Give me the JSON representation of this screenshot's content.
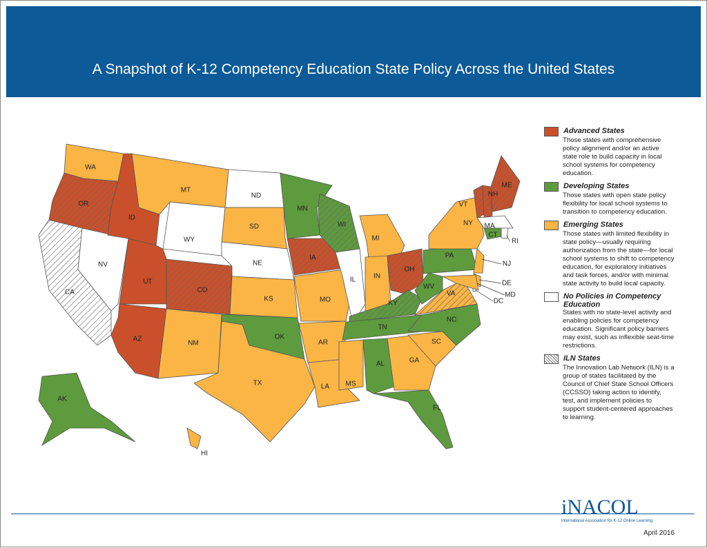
{
  "header": {
    "title": "A Snapshot of K-12 Competency Education State Policy Across the United States"
  },
  "legend": [
    {
      "title": "Advanced States",
      "text": "Those states with comprehensive policy alignment and/or an active state role to build capacity in local school systems for competency education.",
      "color": "#c9502a"
    },
    {
      "title": "Developing States",
      "text": "Those states with open state policy flexibility for local school systems to transition to competency education.",
      "color": "#5e9a3e"
    },
    {
      "title": "Emerging States",
      "text": "Those states with limited flexibility in state policy—usually requiring authorization from the state—for local school systems to shift to competency education, for exploratory initiatives and task forces, and/or with minimal state activity to build local capacity.",
      "color": "#fbb545"
    },
    {
      "title": "No Policies in Competency Education",
      "text": "States with no state-level activity and enabling policies for competency education. Significant policy barriers may exist, such as inflexible seat-time restrictions.",
      "color": "#ffffff"
    },
    {
      "title": "ILN States",
      "text": "The Innovation Lab Network (ILN) is a group of states facilitated by the Council of Chief State School Officers (CCSSO) taking action to identify, test, and implement policies to support student-centered approaches to learning.",
      "hatch": true
    }
  ],
  "states": [
    {
      "label": "WA",
      "category": 2,
      "iln": false
    },
    {
      "label": "OR",
      "category": 0,
      "iln": true
    },
    {
      "label": "CA",
      "category": 3,
      "iln": true
    },
    {
      "label": "NV",
      "category": 3,
      "iln": false
    },
    {
      "label": "ID",
      "category": 0,
      "iln": false
    },
    {
      "label": "MT",
      "category": 2,
      "iln": false
    },
    {
      "label": "WY",
      "category": 3,
      "iln": false
    },
    {
      "label": "UT",
      "category": 0,
      "iln": false
    },
    {
      "label": "CO",
      "category": 0,
      "iln": true
    },
    {
      "label": "AZ",
      "category": 0,
      "iln": false
    },
    {
      "label": "NM",
      "category": 2,
      "iln": false
    },
    {
      "label": "ND",
      "category": 3,
      "iln": false
    },
    {
      "label": "SD",
      "category": 2,
      "iln": false
    },
    {
      "label": "NE",
      "category": 3,
      "iln": false
    },
    {
      "label": "KS",
      "category": 2,
      "iln": false
    },
    {
      "label": "OK",
      "category": 1,
      "iln": false
    },
    {
      "label": "TX",
      "category": 2,
      "iln": false
    },
    {
      "label": "MN",
      "category": 1,
      "iln": false
    },
    {
      "label": "IA",
      "category": 0,
      "iln": true
    },
    {
      "label": "MO",
      "category": 2,
      "iln": false
    },
    {
      "label": "AR",
      "category": 2,
      "iln": false
    },
    {
      "label": "LA",
      "category": 2,
      "iln": false
    },
    {
      "label": "WI",
      "category": 1,
      "iln": true
    },
    {
      "label": "IL",
      "category": 3,
      "iln": false
    },
    {
      "label": "MI",
      "category": 2,
      "iln": false
    },
    {
      "label": "IN",
      "category": 2,
      "iln": false
    },
    {
      "label": "OH",
      "category": 0,
      "iln": true
    },
    {
      "label": "KY",
      "category": 1,
      "iln": true
    },
    {
      "label": "TN",
      "category": 1,
      "iln": false
    },
    {
      "label": "MS",
      "category": 2,
      "iln": false
    },
    {
      "label": "AL",
      "category": 1,
      "iln": false
    },
    {
      "label": "GA",
      "category": 2,
      "iln": false
    },
    {
      "label": "FL",
      "category": 1,
      "iln": false
    },
    {
      "label": "SC",
      "category": 2,
      "iln": false
    },
    {
      "label": "NC",
      "category": 1,
      "iln": false
    },
    {
      "label": "VA",
      "category": 2,
      "iln": true
    },
    {
      "label": "WV",
      "category": 1,
      "iln": false
    },
    {
      "label": "PA",
      "category": 1,
      "iln": false
    },
    {
      "label": "NY",
      "category": 2,
      "iln": false
    },
    {
      "label": "VT",
      "category": 0,
      "iln": true
    },
    {
      "label": "NH",
      "category": 0,
      "iln": true
    },
    {
      "label": "ME",
      "category": 0,
      "iln": true
    },
    {
      "label": "MA",
      "category": 3,
      "iln": false
    },
    {
      "label": "CT",
      "category": 1,
      "iln": false
    },
    {
      "label": "RI",
      "category": 3,
      "iln": false
    },
    {
      "label": "NJ",
      "category": 2,
      "iln": false
    },
    {
      "label": "DE",
      "category": 2,
      "iln": false
    },
    {
      "label": "MD",
      "category": 2,
      "iln": false
    },
    {
      "label": "DC",
      "category": 3,
      "iln": false
    },
    {
      "label": "AK",
      "category": 1,
      "iln": false
    },
    {
      "label": "HI",
      "category": 2,
      "iln": false
    }
  ],
  "logo": {
    "name": "iNACOL",
    "tagline": "International Association for K-12 Online Learning"
  },
  "footer": {
    "date": "April 2016"
  }
}
